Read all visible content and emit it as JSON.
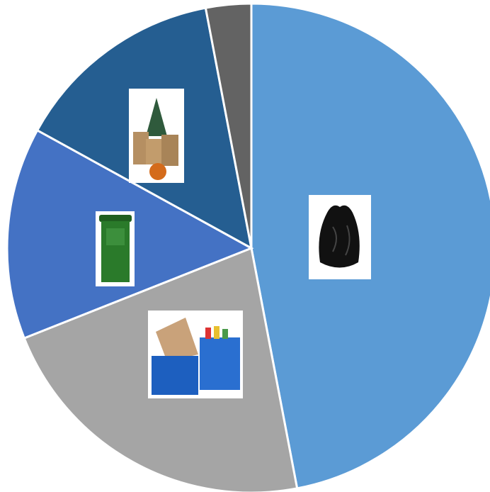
{
  "chart_data": {
    "type": "pie",
    "values": [
      47,
      22,
      14,
      14,
      3
    ],
    "colors": [
      "#5b9bd5",
      "#a5a5a5",
      "#4472c4",
      "#255e91",
      "#636363"
    ],
    "start_angle": 0,
    "direction": "clockwise"
  }
}
